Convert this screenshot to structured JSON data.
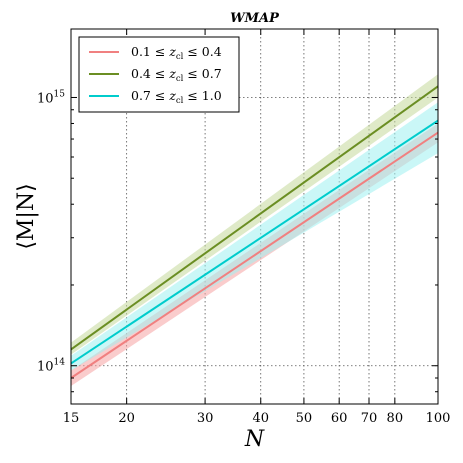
{
  "chart_data": {
    "type": "line",
    "title": "WMAP",
    "xlabel": "N",
    "ylabel": "⟨M|N⟩",
    "xscale": "log",
    "yscale": "log",
    "xlim": [
      15,
      100
    ],
    "ylim": [
      72000000000000.0,
      1800000000000000.0
    ],
    "grid": true,
    "legend_position": "top-left",
    "x_ticks": [
      15,
      20,
      30,
      40,
      50,
      60,
      70,
      80,
      100
    ],
    "x_tick_labels": [
      "15",
      "20",
      "30",
      "40",
      "50",
      "60",
      "70",
      "80",
      "100"
    ],
    "y_ticks": [
      100000000000000.0,
      1000000000000000.0
    ],
    "y_tick_labels": [
      {
        "base": "10",
        "exp": "14"
      },
      {
        "base": "10",
        "exp": "15"
      }
    ],
    "series": [
      {
        "name": "0.1 ≤ z_cl ≤ 0.4",
        "legend_parts": {
          "low": "0.1",
          "var": "z",
          "sub": "cl",
          "high": "0.4"
        },
        "color": "#f08080",
        "band_color": "#f5a3a3",
        "x": [
          15,
          100
        ],
        "y": [
          90000000000000.0,
          740000000000000.0
        ],
        "band_lower": [
          84000000000000.0,
          680000000000000.0
        ],
        "band_upper": [
          96000000000000.0,
          800000000000000.0
        ]
      },
      {
        "name": "0.4 ≤ z_cl ≤ 0.7",
        "legend_parts": {
          "low": "0.4",
          "var": "z",
          "sub": "cl",
          "high": "0.7"
        },
        "color": "#6b8e23",
        "band_color": "#c5d99a",
        "x": [
          15,
          100
        ],
        "y": [
          115000000000000.0,
          1100000000000000.0
        ],
        "band_lower": [
          110000000000000.0,
          1000000000000000.0
        ],
        "band_upper": [
          122000000000000.0,
          1220000000000000.0
        ]
      },
      {
        "name": "0.7 ≤ z_cl ≤ 1.0",
        "legend_parts": {
          "low": "0.7",
          "var": "z",
          "sub": "cl",
          "high": "1.0"
        },
        "color": "#00cccc",
        "band_color": "#9ef0f0",
        "x": [
          15,
          100
        ],
        "y": [
          102000000000000.0,
          820000000000000.0
        ],
        "band_lower": [
          96000000000000.0,
          620000000000000.0
        ],
        "band_upper": [
          109000000000000.0,
          960000000000000.0
        ]
      }
    ]
  }
}
